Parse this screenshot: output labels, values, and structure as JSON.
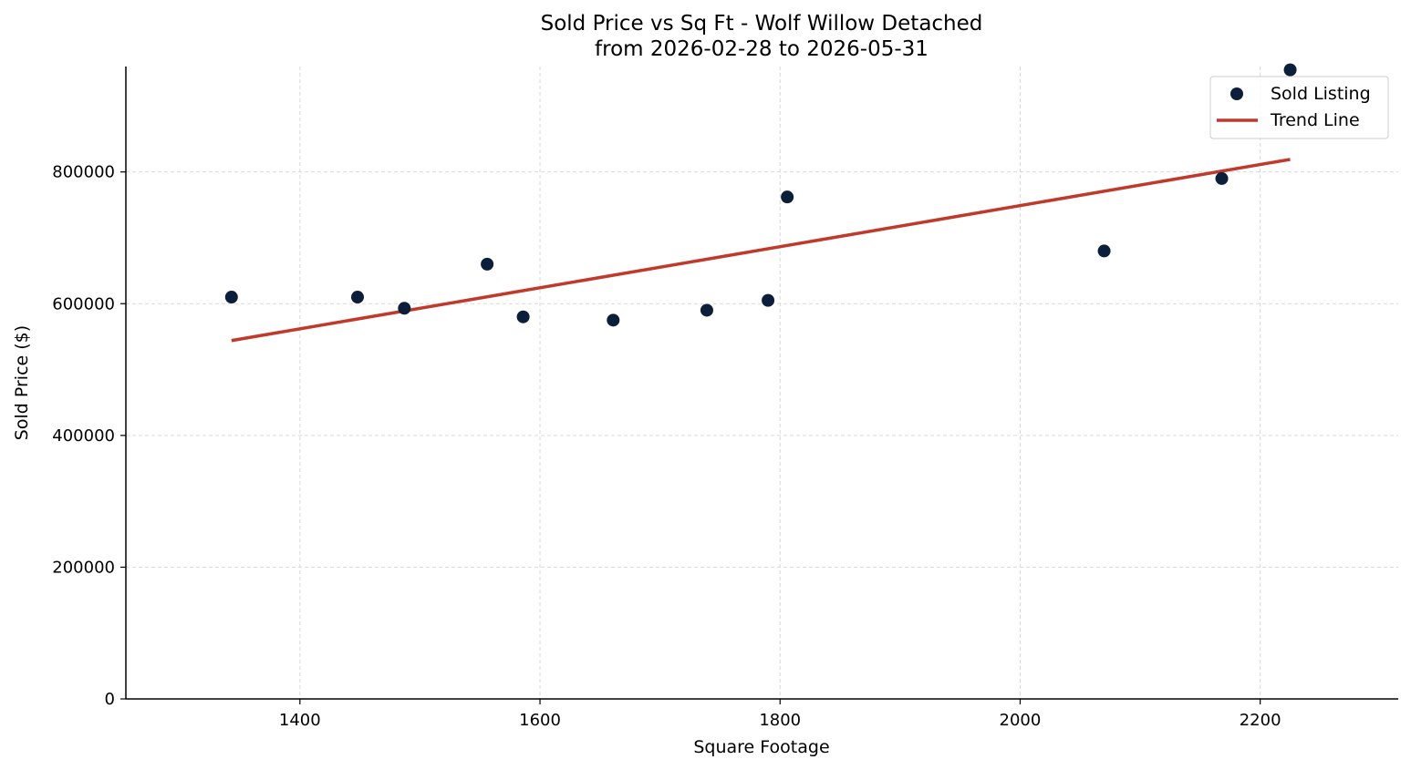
{
  "chart_data": {
    "type": "scatter",
    "title_line1": "Sold Price vs Sq Ft - Wolf Willow Detached",
    "title_line2": "from 2026-02-28 to 2026-05-31",
    "xlabel": "Square Footage",
    "ylabel": "Sold Price ($)",
    "xlim": [
      1255,
      2315
    ],
    "ylim": [
      0,
      960000
    ],
    "xticks": [
      1400,
      1600,
      1800,
      2000,
      2200
    ],
    "yticks": [
      0,
      200000,
      400000,
      600000,
      800000
    ],
    "grid": true,
    "legend_position": "top-right",
    "colors": {
      "points": "#0c1f3a",
      "trend": "#c0392b"
    },
    "series": [
      {
        "name": "Sold Listing",
        "kind": "scatter",
        "points": [
          {
            "x": 1343,
            "y": 610000
          },
          {
            "x": 1448,
            "y": 610000
          },
          {
            "x": 1487,
            "y": 593000
          },
          {
            "x": 1556,
            "y": 660000
          },
          {
            "x": 1586,
            "y": 580000
          },
          {
            "x": 1661,
            "y": 575000
          },
          {
            "x": 1739,
            "y": 590000
          },
          {
            "x": 1790,
            "y": 605000
          },
          {
            "x": 1806,
            "y": 762000
          },
          {
            "x": 2070,
            "y": 680000
          },
          {
            "x": 2168,
            "y": 790000
          },
          {
            "x": 2225,
            "y": 955000
          }
        ]
      },
      {
        "name": "Trend Line",
        "kind": "line",
        "points": [
          {
            "x": 1343,
            "y": 544000
          },
          {
            "x": 2225,
            "y": 819000
          }
        ]
      }
    ]
  }
}
